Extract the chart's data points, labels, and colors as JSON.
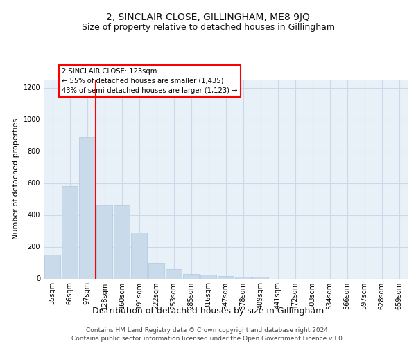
{
  "title": "2, SINCLAIR CLOSE, GILLINGHAM, ME8 9JQ",
  "subtitle": "Size of property relative to detached houses in Gillingham",
  "xlabel": "Distribution of detached houses by size in Gillingham",
  "ylabel": "Number of detached properties",
  "categories": [
    "35sqm",
    "66sqm",
    "97sqm",
    "128sqm",
    "160sqm",
    "191sqm",
    "222sqm",
    "253sqm",
    "285sqm",
    "316sqm",
    "347sqm",
    "378sqm",
    "409sqm",
    "441sqm",
    "472sqm",
    "503sqm",
    "534sqm",
    "566sqm",
    "597sqm",
    "628sqm",
    "659sqm"
  ],
  "values": [
    150,
    580,
    890,
    465,
    465,
    290,
    100,
    58,
    28,
    22,
    15,
    10,
    10,
    0,
    0,
    0,
    0,
    0,
    0,
    0,
    0
  ],
  "bar_color": "#c9daea",
  "bar_edge_color": "#b0c8dc",
  "grid_color": "#ccd8e8",
  "background_color": "#e8f0f8",
  "annotation_line1": "2 SINCLAIR CLOSE: 123sqm",
  "annotation_line2": "← 55% of detached houses are smaller (1,435)",
  "annotation_line3": "43% of semi-detached houses are larger (1,123) →",
  "ylim": [
    0,
    1250
  ],
  "yticks": [
    0,
    200,
    400,
    600,
    800,
    1000,
    1200
  ],
  "footer1": "Contains HM Land Registry data © Crown copyright and database right 2024.",
  "footer2": "Contains public sector information licensed under the Open Government Licence v3.0.",
  "title_fontsize": 10,
  "subtitle_fontsize": 9,
  "tick_fontsize": 7,
  "ylabel_fontsize": 8,
  "xlabel_fontsize": 9
}
